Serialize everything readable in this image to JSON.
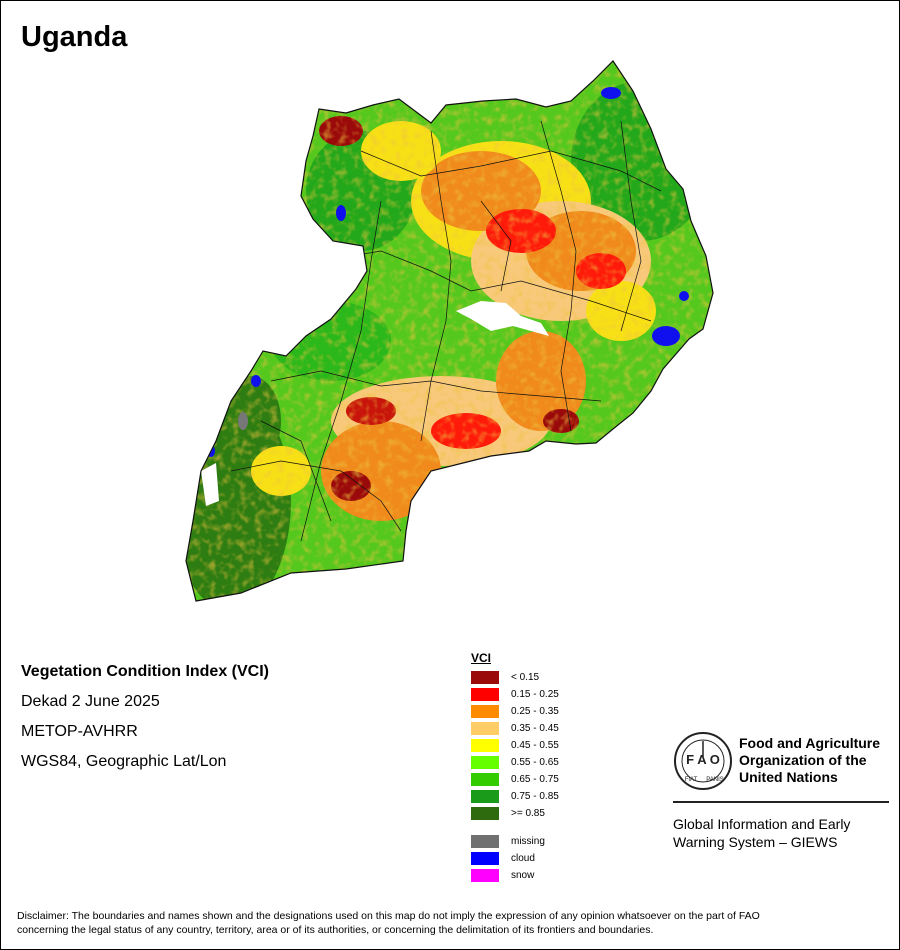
{
  "title": "Uganda",
  "info": {
    "index_name": "Vegetation Condition Index (VCI)",
    "period": "Dekad 2 June 2025",
    "sensor": "METOP-AVHRR",
    "projection": "WGS84, Geographic Lat/Lon"
  },
  "legend": {
    "title": "VCI",
    "classes": [
      {
        "label": "< 0.15",
        "color": "#9b0a0a"
      },
      {
        "label": "0.15 - 0.25",
        "color": "#ff0000"
      },
      {
        "label": "0.25 - 0.35",
        "color": "#ff8c00"
      },
      {
        "label": "0.35 - 0.45",
        "color": "#ffcc66"
      },
      {
        "label": "0.45 - 0.55",
        "color": "#ffff00"
      },
      {
        "label": "0.55 - 0.65",
        "color": "#66ff00"
      },
      {
        "label": "0.65 - 0.75",
        "color": "#33cc00"
      },
      {
        "label": "0.75 - 0.85",
        "color": "#1a9c1a"
      },
      {
        "label": ">= 0.85",
        "color": "#2e6b0e"
      }
    ],
    "special": [
      {
        "label": "missing",
        "color": "#707070"
      },
      {
        "label": "cloud",
        "color": "#0000ff"
      },
      {
        "label": "snow",
        "color": "#ff00ff"
      }
    ]
  },
  "org": {
    "line1": "Food and Agriculture",
    "line2": "Organization of the",
    "line3": "United Nations",
    "giews1": "Global Information and Early",
    "giews2": "Warning System – GIEWS"
  },
  "disclaimer": {
    "line1": "Disclaimer: The boundaries and names shown and the designations used on this map do not imply the expression of any opinion whatsoever on the part of FAO",
    "line2": "concerning the legal status of any country, territory, area or of its authorities, or concerning the delimitation of its frontiers and boundaries."
  }
}
